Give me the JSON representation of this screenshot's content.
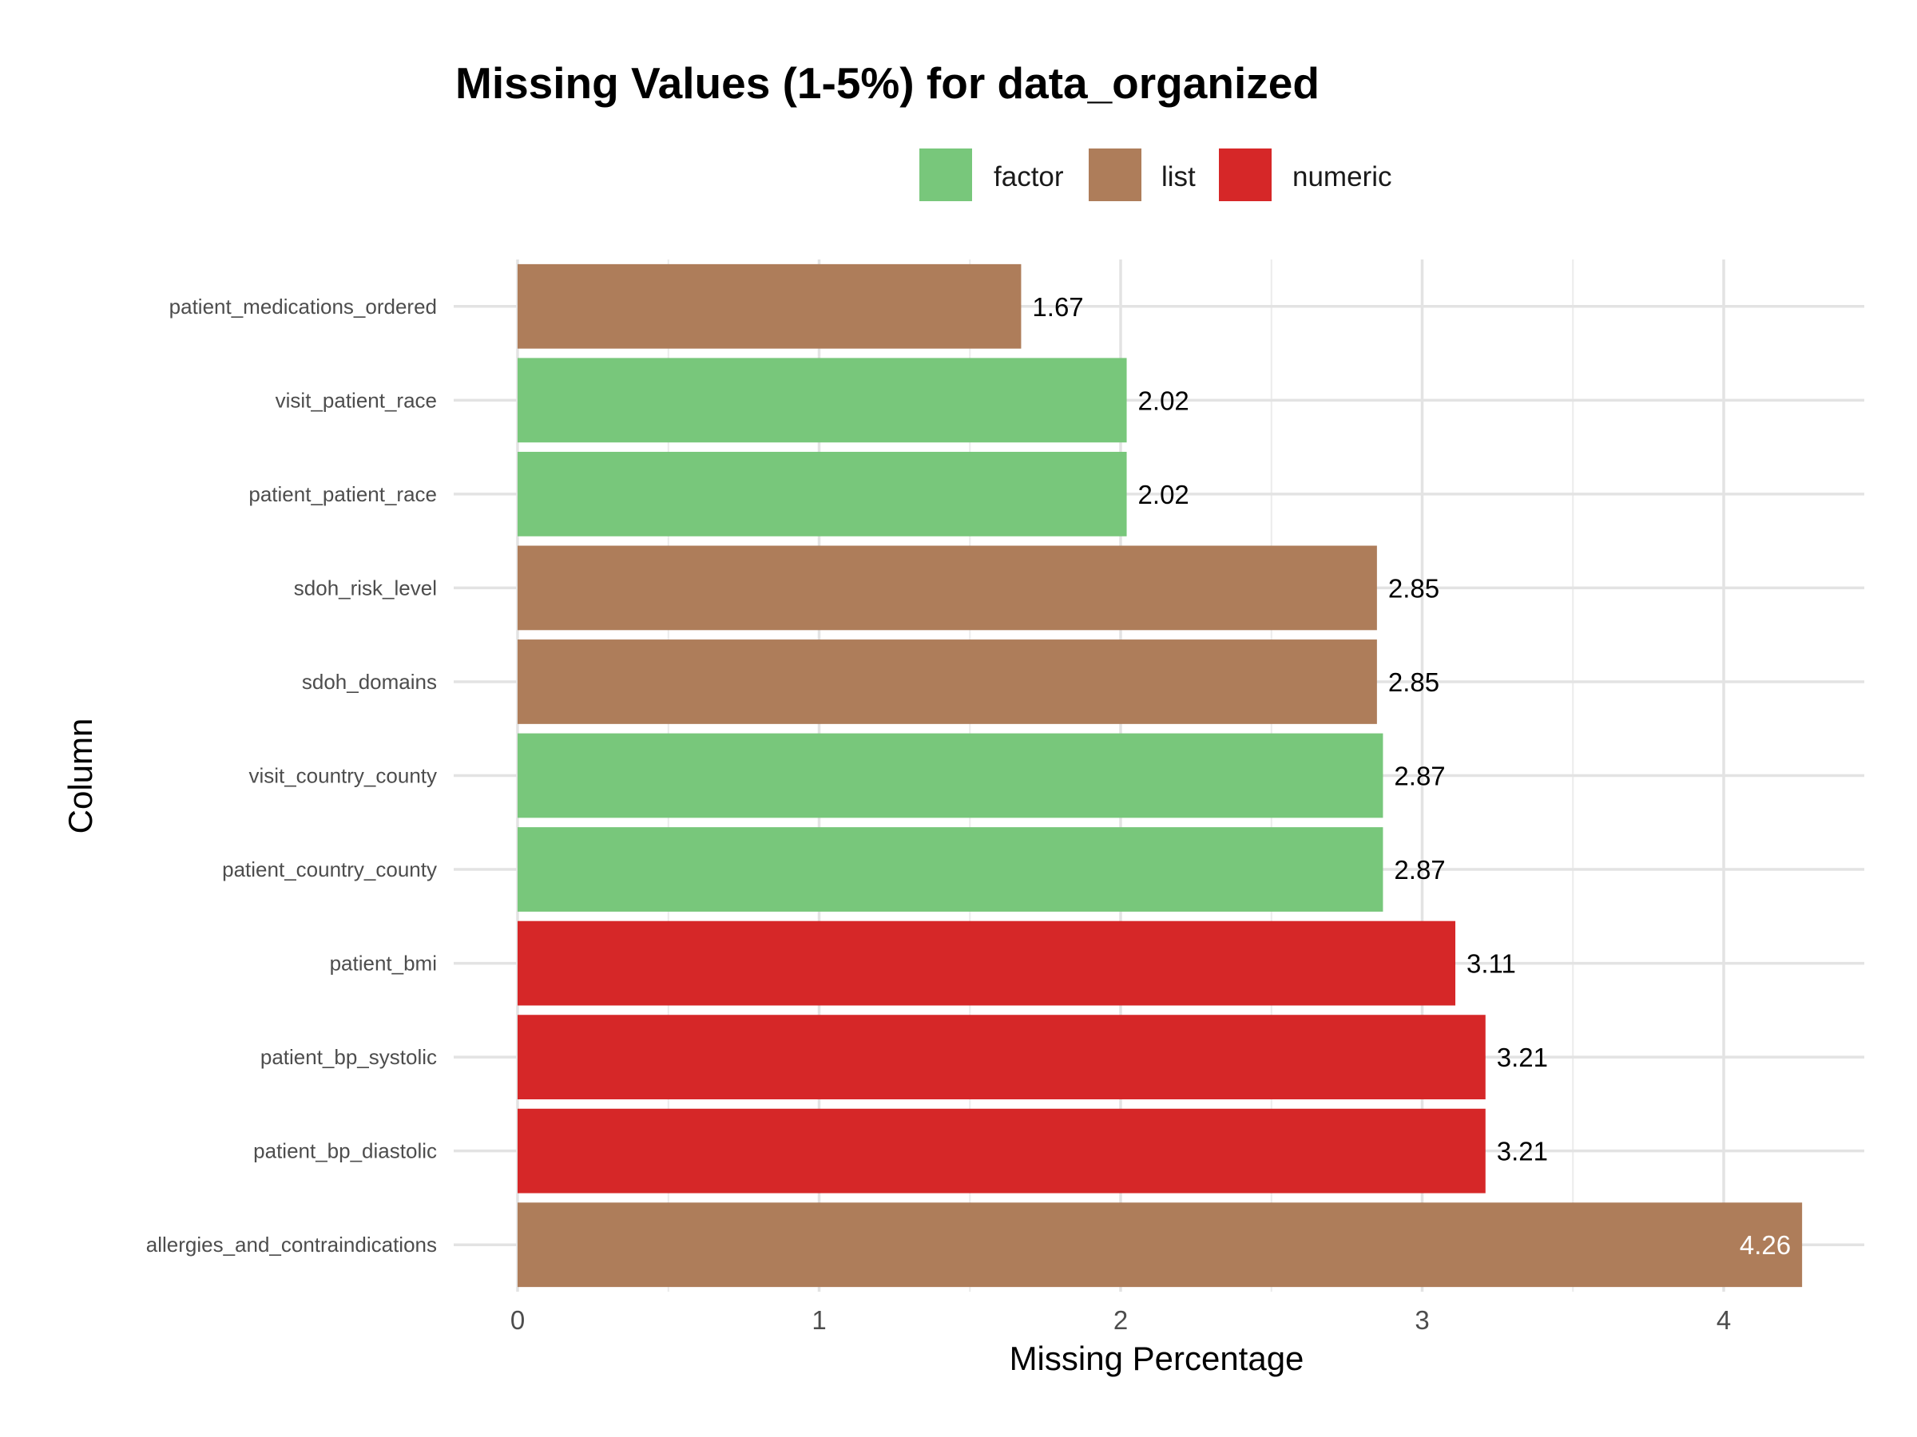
{
  "chart_data": {
    "type": "bar",
    "orientation": "horizontal",
    "title": "Missing Values (1-5%) for data_organized",
    "xlabel": "Missing Percentage",
    "ylabel": "Column",
    "xlim": [
      0,
      4.47
    ],
    "x_ticks": [
      "0",
      "1",
      "2",
      "3",
      "4"
    ],
    "grid": true,
    "legend_position": "top",
    "legend": [
      {
        "name": "factor",
        "color": "#78c77b"
      },
      {
        "name": "list",
        "color": "#ae7d5a"
      },
      {
        "name": "numeric",
        "color": "#d62728"
      }
    ],
    "categories": [
      "patient_medications_ordered",
      "visit_patient_race",
      "patient_patient_race",
      "sdoh_risk_level",
      "sdoh_domains",
      "visit_country_county",
      "patient_country_county",
      "patient_bmi",
      "patient_bp_systolic",
      "patient_bp_diastolic",
      "allergies_and_contraindications"
    ],
    "values": [
      1.67,
      2.02,
      2.02,
      2.85,
      2.85,
      2.87,
      2.87,
      3.11,
      3.21,
      3.21,
      4.26
    ],
    "value_labels": [
      "1.67",
      "2.02",
      "2.02",
      "2.85",
      "2.85",
      "2.87",
      "2.87",
      "3.11",
      "3.21",
      "3.21",
      "4.26"
    ],
    "types": [
      "list",
      "factor",
      "factor",
      "list",
      "list",
      "factor",
      "factor",
      "numeric",
      "numeric",
      "numeric",
      "list"
    ]
  }
}
